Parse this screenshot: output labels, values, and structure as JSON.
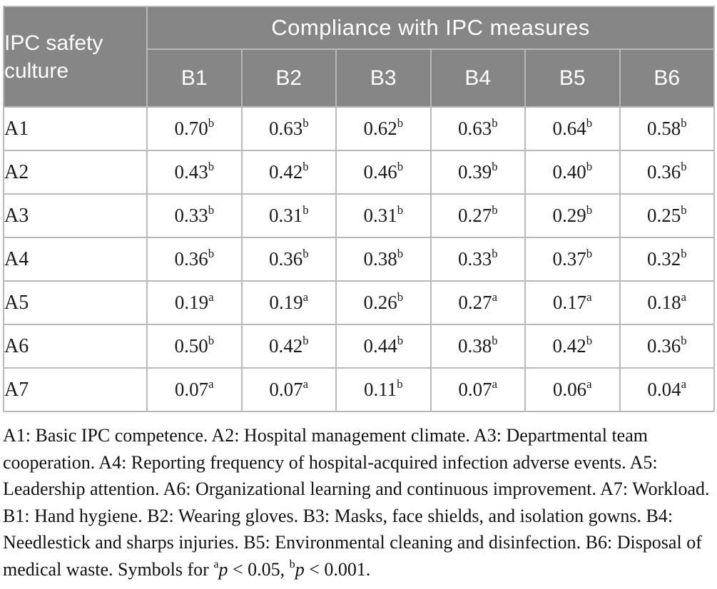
{
  "colors": {
    "header_bg": "#868686",
    "header_text": "#ffffff",
    "grid_line": "#b9b9b9",
    "body_text": "#1a1a1a"
  },
  "table": {
    "row_group_header": "IPC safety culture",
    "column_group_header": "Compliance with IPC measures",
    "columns": [
      "B1",
      "B2",
      "B3",
      "B4",
      "B5",
      "B6"
    ],
    "rows": [
      {
        "label": "A1",
        "cells": [
          {
            "v": "0.70",
            "s": "b"
          },
          {
            "v": "0.63",
            "s": "b"
          },
          {
            "v": "0.62",
            "s": "b"
          },
          {
            "v": "0.63",
            "s": "b"
          },
          {
            "v": "0.64",
            "s": "b"
          },
          {
            "v": "0.58",
            "s": "b"
          }
        ]
      },
      {
        "label": "A2",
        "cells": [
          {
            "v": "0.43",
            "s": "b"
          },
          {
            "v": "0.42",
            "s": "b"
          },
          {
            "v": "0.46",
            "s": "b"
          },
          {
            "v": "0.39",
            "s": "b"
          },
          {
            "v": "0.40",
            "s": "b"
          },
          {
            "v": "0.36",
            "s": "b"
          }
        ]
      },
      {
        "label": "A3",
        "cells": [
          {
            "v": "0.33",
            "s": "b"
          },
          {
            "v": "0.31",
            "s": "b"
          },
          {
            "v": "0.31",
            "s": "b"
          },
          {
            "v": "0.27",
            "s": "b"
          },
          {
            "v": "0.29",
            "s": "b"
          },
          {
            "v": "0.25",
            "s": "b"
          }
        ]
      },
      {
        "label": "A4",
        "cells": [
          {
            "v": "0.36",
            "s": "b"
          },
          {
            "v": "0.36",
            "s": "b"
          },
          {
            "v": "0.38",
            "s": "b"
          },
          {
            "v": "0.33",
            "s": "b"
          },
          {
            "v": "0.37",
            "s": "b"
          },
          {
            "v": "0.32",
            "s": "b"
          }
        ]
      },
      {
        "label": "A5",
        "cells": [
          {
            "v": "0.19",
            "s": "a"
          },
          {
            "v": "0.19",
            "s": "a"
          },
          {
            "v": "0.26",
            "s": "b"
          },
          {
            "v": "0.27",
            "s": "a"
          },
          {
            "v": "0.17",
            "s": "a"
          },
          {
            "v": "0.18",
            "s": "a"
          }
        ]
      },
      {
        "label": "A6",
        "cells": [
          {
            "v": "0.50",
            "s": "b"
          },
          {
            "v": "0.42",
            "s": "b"
          },
          {
            "v": "0.44",
            "s": "b"
          },
          {
            "v": "0.38",
            "s": "b"
          },
          {
            "v": "0.42",
            "s": "b"
          },
          {
            "v": "0.36",
            "s": "b"
          }
        ]
      },
      {
        "label": "A7",
        "cells": [
          {
            "v": "0.07",
            "s": "a"
          },
          {
            "v": "0.07",
            "s": "a"
          },
          {
            "v": "0.11",
            "s": "b"
          },
          {
            "v": "0.07",
            "s": "a"
          },
          {
            "v": "0.06",
            "s": "a"
          },
          {
            "v": "0.04",
            "s": "a"
          }
        ]
      }
    ]
  },
  "footnote": {
    "segments": [
      {
        "t": "A1: Basic IPC competence. A2: Hospital management climate. A3: Departmental team cooperation. A4: Reporting frequency of hospital-acquired infection adverse events. A5: Leadership attention. A6: Organizational learning and continuous improvement. A7: Workload. B1: Hand hygiene. B2: Wearing gloves. B3: Masks, face shields, and isolation gowns. B4: Needlestick and sharps injuries. B5: Environmental cleaning and disinfection. B6: Disposal of medical waste. Symbols for ",
        "style": "plain"
      },
      {
        "t": "a",
        "style": "sup"
      },
      {
        "t": "p",
        "style": "italic"
      },
      {
        "t": " < 0.05, ",
        "style": "plain"
      },
      {
        "t": "b",
        "style": "sup"
      },
      {
        "t": "p",
        "style": "italic"
      },
      {
        "t": " < 0.001.",
        "style": "plain"
      }
    ]
  }
}
